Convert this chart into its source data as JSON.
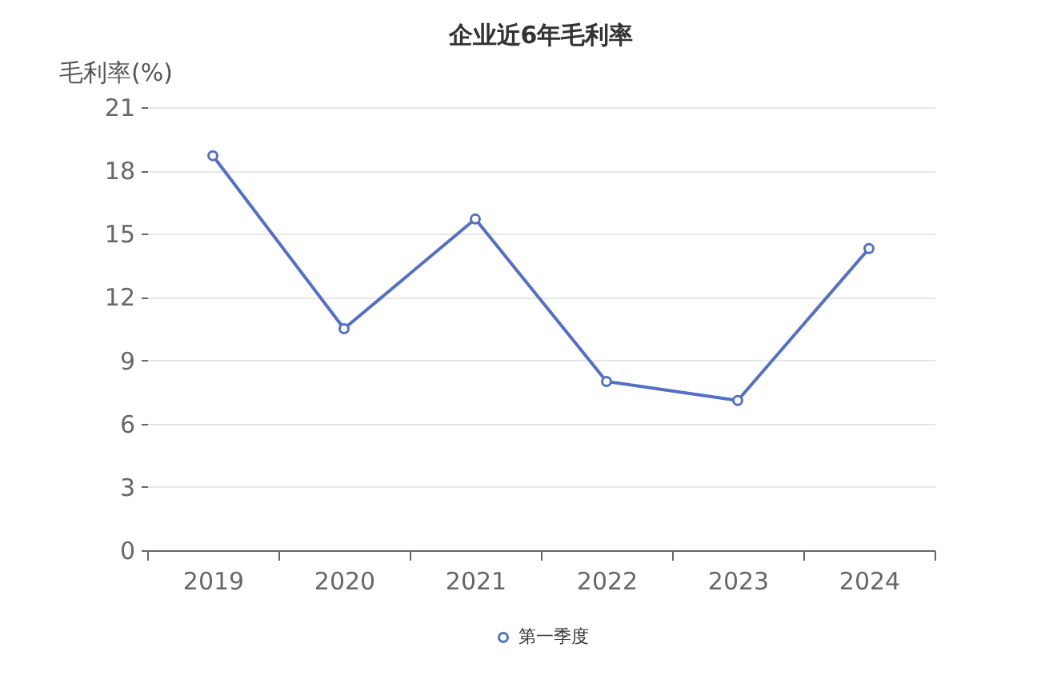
{
  "chart_data": {
    "type": "line",
    "title": "企业近6年毛利率",
    "ylabel": "毛利率(%)",
    "categories": [
      "2019",
      "2020",
      "2021",
      "2022",
      "2023",
      "2024"
    ],
    "series": [
      {
        "name": "第一季度",
        "color": "#5470c6",
        "values": [
          18.7,
          10.5,
          15.7,
          8.0,
          7.1,
          14.3
        ]
      }
    ],
    "ylim": [
      0,
      21
    ],
    "yticks": [
      0,
      3,
      6,
      9,
      12,
      15,
      18,
      21
    ],
    "grid": "y",
    "legend": "bottom",
    "marker": "circle",
    "line_style": "solid"
  }
}
